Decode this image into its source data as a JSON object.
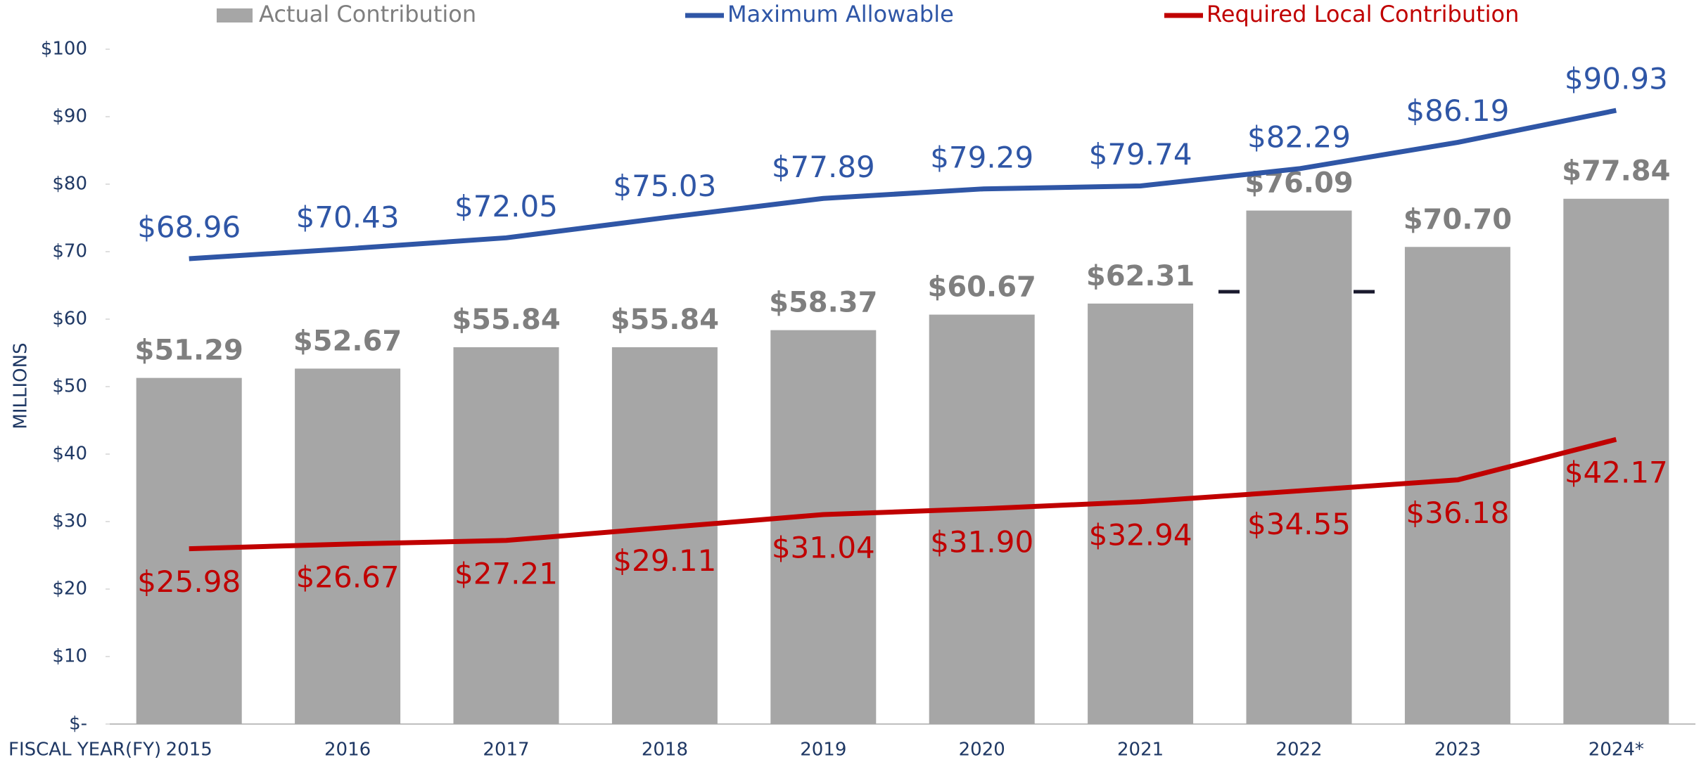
{
  "chart_data": {
    "type": "bar",
    "x_label": "FISCAL YEAR(FY)",
    "y_label": "MILLIONS",
    "categories": [
      "2015",
      "2016",
      "2017",
      "2018",
      "2019",
      "2020",
      "2021",
      "2022",
      "2023",
      "2024*"
    ],
    "ylim": [
      0,
      100
    ],
    "yticks": [
      {
        "value": 0,
        "label": "$-"
      },
      {
        "value": 10,
        "label": "$10"
      },
      {
        "value": 20,
        "label": "$20"
      },
      {
        "value": 30,
        "label": "$30"
      },
      {
        "value": 40,
        "label": "$40"
      },
      {
        "value": 50,
        "label": "$50"
      },
      {
        "value": 60,
        "label": "$60"
      },
      {
        "value": 70,
        "label": "$70"
      },
      {
        "value": 80,
        "label": "$80"
      },
      {
        "value": 90,
        "label": "$90"
      },
      {
        "value": 100,
        "label": "$100"
      }
    ],
    "series": [
      {
        "name": "Actual Contribution",
        "type": "bar",
        "color": "#a6a6a6",
        "label_color": "#7f7f7f",
        "values": [
          51.29,
          52.67,
          55.84,
          55.84,
          58.37,
          60.67,
          62.31,
          76.09,
          70.7,
          77.84
        ],
        "value_labels": [
          "$51.29",
          "$52.67",
          "$55.84",
          "$55.84",
          "$58.37",
          "$60.67",
          "$62.31",
          "$76.09",
          "$70.70",
          "$77.84"
        ]
      },
      {
        "name": "Maximum Allowable",
        "type": "line",
        "color": "#2f56a6",
        "label_color": "#2f56a6",
        "values": [
          68.96,
          70.43,
          72.05,
          75.03,
          77.89,
          79.29,
          79.74,
          82.29,
          86.19,
          90.93
        ],
        "value_labels": [
          "$68.96",
          "$70.43",
          "$72.05",
          "$75.03",
          "$77.89",
          "$79.29",
          "$79.74",
          "$82.29",
          "$86.19",
          "$90.93"
        ]
      },
      {
        "name": "Required Local Contribution",
        "type": "line",
        "color": "#c00000",
        "label_color": "#c00000",
        "values": [
          25.98,
          26.67,
          27.21,
          29.11,
          31.04,
          31.9,
          32.94,
          34.55,
          36.18,
          42.17
        ],
        "value_labels": [
          "$25.98",
          "$26.67",
          "$27.21",
          "$29.11",
          "$31.04",
          "$31.90",
          "$32.94",
          "$34.55",
          "$36.18",
          "$42.17"
        ]
      }
    ]
  }
}
